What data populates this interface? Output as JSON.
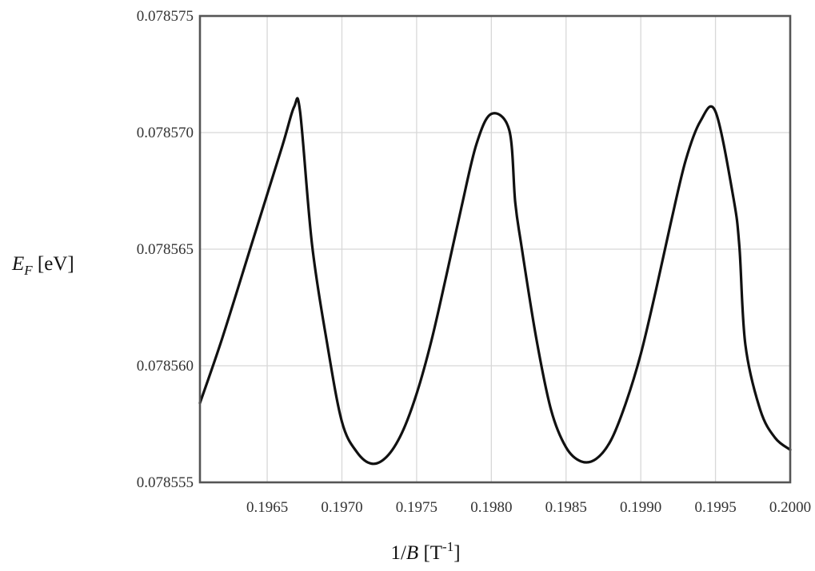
{
  "chart_data": {
    "type": "line",
    "title": "",
    "xlabel": {
      "base": "1/",
      "var": "B",
      "unit_open": " [T",
      "unit_sup": "-1",
      "unit_close": "]"
    },
    "ylabel": {
      "var": "E",
      "sub": "F",
      "unit": " [eV]"
    },
    "xlim": [
      0.19605,
      0.2
    ],
    "ylim": [
      0.078555,
      0.078575
    ],
    "x_ticks": [
      0.1965,
      0.197,
      0.1975,
      0.198,
      0.1985,
      0.199,
      0.1995,
      0.2
    ],
    "x_tick_labels": [
      "0.1965",
      "0.1970",
      "0.1975",
      "0.1980",
      "0.1985",
      "0.1990",
      "0.1995",
      "0.2000"
    ],
    "y_ticks": [
      0.078555,
      0.07856,
      0.078565,
      0.07857,
      0.078575
    ],
    "y_tick_labels": [
      "0.078555",
      "0.078560",
      "0.078565",
      "0.078570",
      "0.078575"
    ],
    "grid": true,
    "legend": "none",
    "line_color": "#111111",
    "series": [
      {
        "x": [
          0.19605,
          0.1962,
          0.1964,
          0.1966,
          0.19668,
          0.19672,
          0.1968,
          0.1969,
          0.197,
          0.1971,
          0.1972,
          0.1973,
          0.1974,
          0.1975,
          0.1976,
          0.1977,
          0.1978,
          0.1979,
          0.198,
          0.19812,
          0.19816,
          0.1982,
          0.1983,
          0.1984,
          0.1985,
          0.1986,
          0.1987,
          0.1988,
          0.1989,
          0.199,
          0.1991,
          0.1992,
          0.1993,
          0.1994,
          0.1995,
          0.19962,
          0.19966,
          0.1997,
          0.1998,
          0.1999,
          0.2
        ],
        "y": [
          0.0785584,
          0.0785612,
          0.0785653,
          0.0785694,
          0.0785711,
          0.0785709,
          0.0785652,
          0.078561,
          0.0785576,
          0.0785563,
          0.0785558,
          0.0785561,
          0.0785571,
          0.0785588,
          0.0785611,
          0.0785639,
          0.0785668,
          0.0785695,
          0.0785708,
          0.0785701,
          0.078567,
          0.0785652,
          0.0785612,
          0.0785581,
          0.0785565,
          0.0785559,
          0.078556,
          0.0785568,
          0.0785584,
          0.0785605,
          0.0785632,
          0.0785661,
          0.0785688,
          0.0785705,
          0.0785709,
          0.0785672,
          0.0785651,
          0.0785609,
          0.0785581,
          0.0785569,
          0.0785564
        ]
      }
    ]
  }
}
